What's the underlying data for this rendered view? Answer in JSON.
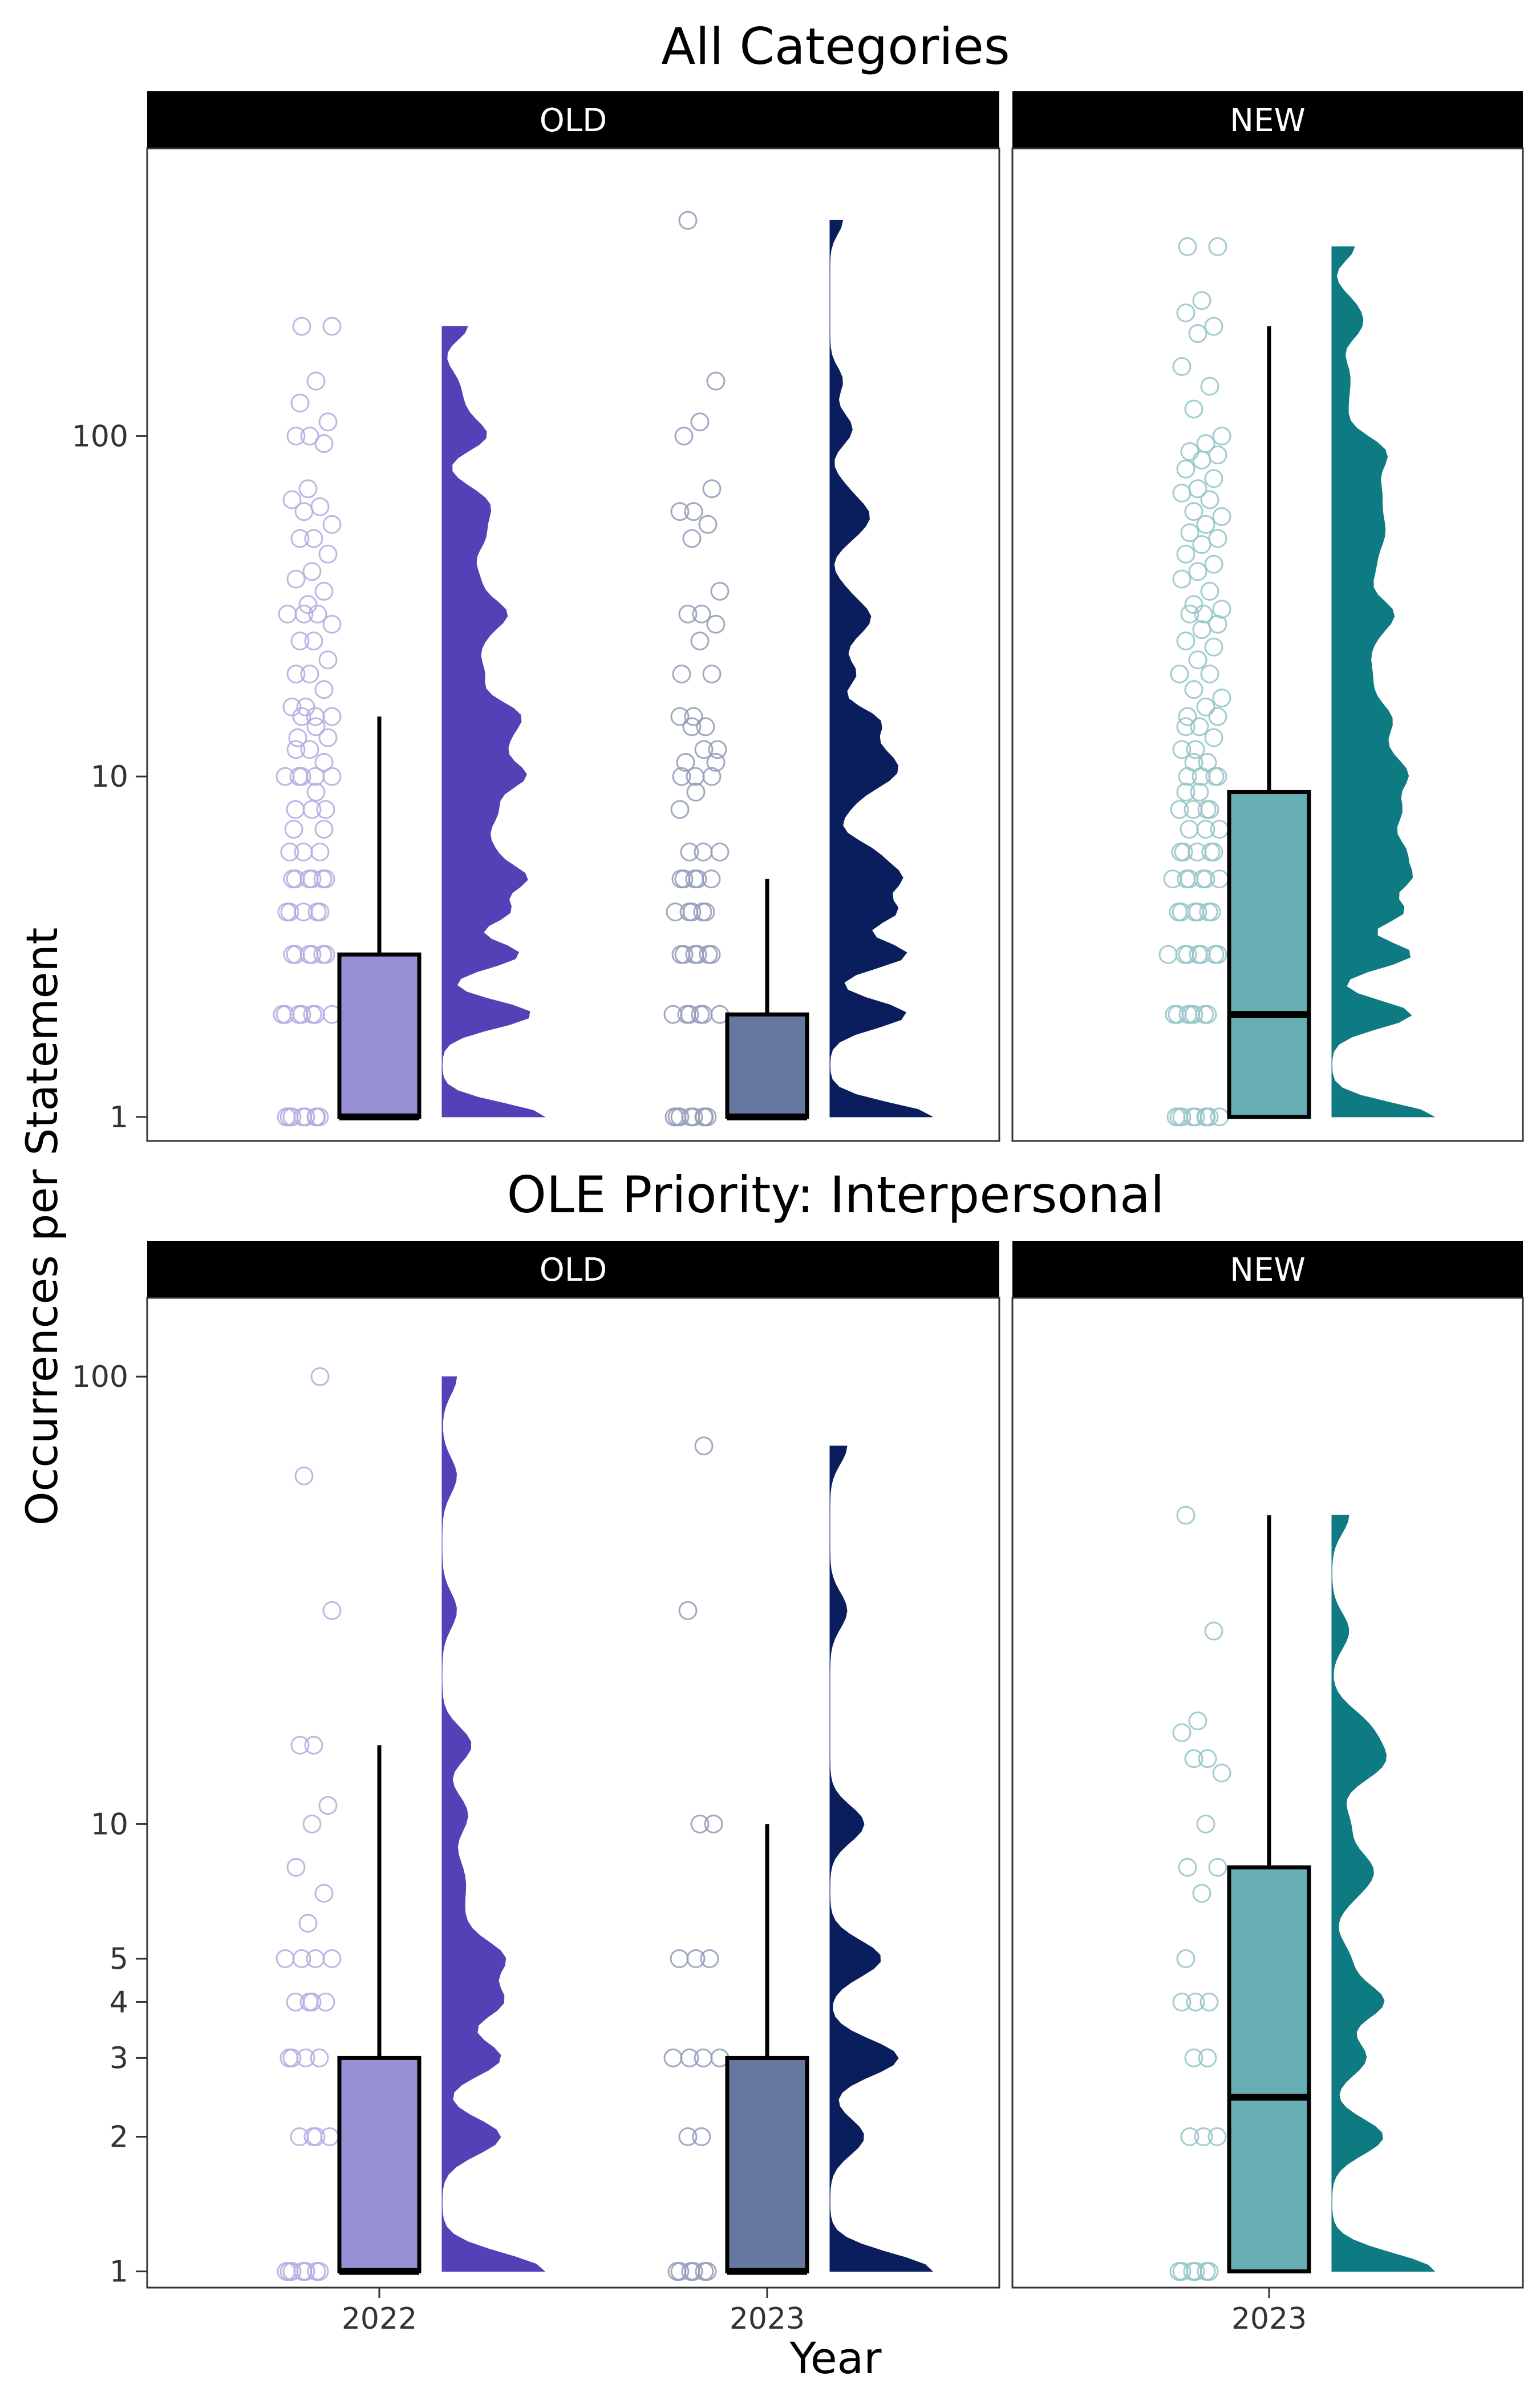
{
  "colors": {
    "2022_old": "#5540B8",
    "2023_old": "#0A1E5E",
    "2023_new": "#0E7A82",
    "box_2022_old": "#9590D4",
    "box_2023_old": "#6678A0",
    "box_2023_new": "#67AEB4"
  },
  "axes": {
    "ylabel": "Occurrences per Statement",
    "xlabel": "Year",
    "yscale": "log10"
  },
  "chart_data": [
    {
      "type": "box-raincloud",
      "title": "All Categories",
      "ylim": [
        0.85,
        700
      ],
      "yticks": [
        1,
        10,
        100
      ],
      "yticklabels": [
        "1",
        "10",
        "100"
      ],
      "panels": [
        {
          "strip": "OLD",
          "groups": [
            {
              "x": "2022",
              "color_key": "2022_old",
              "box": {
                "min": 1,
                "q1": 1,
                "median": 1,
                "q3": 3,
                "max": 15
              },
              "points": [
                1,
                1,
                1,
                1,
                1,
                1,
                1,
                1,
                2,
                2,
                2,
                2,
                2,
                2,
                2,
                3,
                3,
                3,
                3,
                3,
                3,
                4,
                4,
                4,
                4,
                4,
                5,
                5,
                5,
                5,
                5,
                5,
                6,
                6,
                6,
                7,
                7,
                8,
                8,
                8,
                9,
                10,
                10,
                10,
                10,
                10,
                11,
                12,
                12,
                13,
                13,
                14,
                15,
                15,
                15,
                16,
                16,
                18,
                20,
                20,
                22,
                25,
                25,
                28,
                30,
                30,
                30,
                32,
                35,
                38,
                40,
                45,
                50,
                50,
                55,
                60,
                62,
                65,
                70,
                95,
                100,
                100,
                110,
                125,
                145,
                210,
                210
              ]
            },
            {
              "x": "2023",
              "color_key": "2023_old",
              "box": {
                "min": 1,
                "q1": 1,
                "median": 1,
                "q3": 2,
                "max": 5
              },
              "points": [
                1,
                1,
                1,
                1,
                1,
                1,
                1,
                1,
                2,
                2,
                2,
                2,
                2,
                2,
                3,
                3,
                3,
                3,
                3,
                3,
                4,
                4,
                4,
                4,
                4,
                5,
                5,
                5,
                5,
                5,
                6,
                6,
                6,
                8,
                9,
                10,
                10,
                10,
                11,
                11,
                12,
                12,
                14,
                14,
                15,
                15,
                20,
                20,
                25,
                28,
                30,
                30,
                35,
                50,
                55,
                60,
                60,
                70,
                100,
                110,
                145,
                430
              ]
            }
          ]
        },
        {
          "strip": "NEW",
          "groups": [
            {
              "x": "2023",
              "color_key": "2023_new",
              "box": {
                "min": 1,
                "q1": 1,
                "median": 2,
                "q3": 9,
                "max": 210
              },
              "points": [
                1,
                1,
                1,
                1,
                1,
                1,
                1,
                1,
                1,
                2,
                2,
                2,
                2,
                2,
                2,
                2,
                3,
                3,
                3,
                3,
                3,
                3,
                3,
                4,
                4,
                4,
                4,
                4,
                4,
                5,
                5,
                5,
                5,
                5,
                5,
                6,
                6,
                6,
                6,
                6,
                7,
                7,
                7,
                8,
                8,
                8,
                8,
                9,
                9,
                10,
                10,
                10,
                10,
                11,
                11,
                12,
                12,
                13,
                14,
                14,
                15,
                15,
                16,
                17,
                18,
                20,
                20,
                22,
                24,
                25,
                27,
                28,
                30,
                30,
                31,
                32,
                35,
                38,
                40,
                42,
                45,
                48,
                50,
                52,
                55,
                58,
                60,
                65,
                68,
                70,
                75,
                80,
                85,
                88,
                90,
                95,
                100,
                120,
                140,
                160,
                200,
                210,
                230,
                250,
                360,
                360
              ]
            }
          ]
        }
      ]
    },
    {
      "type": "box-raincloud",
      "title": "OLE Priority: Interpersonal",
      "ylim": [
        0.92,
        150
      ],
      "yticks": [
        1,
        2,
        3,
        4,
        5,
        10,
        100
      ],
      "yticklabels": [
        "1",
        "2",
        "3",
        "4",
        "5",
        "10",
        "100"
      ],
      "panels": [
        {
          "strip": "OLD",
          "groups": [
            {
              "x": "2022",
              "color_key": "2022_old",
              "box": {
                "min": 1,
                "q1": 1,
                "median": 1,
                "q3": 3,
                "max": 15
              },
              "points": [
                1,
                1,
                1,
                1,
                1,
                1,
                1,
                2,
                2,
                2,
                2,
                3,
                3,
                3,
                3,
                4,
                4,
                4,
                4,
                5,
                5,
                5,
                5,
                6,
                7,
                8,
                10,
                11,
                15,
                15,
                30,
                60,
                100
              ]
            },
            {
              "x": "2023",
              "color_key": "2023_old",
              "box": {
                "min": 1,
                "q1": 1,
                "median": 1,
                "q3": 3,
                "max": 10
              },
              "points": [
                1,
                1,
                1,
                1,
                1,
                1,
                2,
                2,
                3,
                3,
                3,
                3,
                5,
                5,
                5,
                10,
                10,
                30,
                70
              ]
            }
          ]
        },
        {
          "strip": "NEW",
          "groups": [
            {
              "x": "2023",
              "color_key": "2023_new",
              "box": {
                "min": 1,
                "q1": 1,
                "median": 2.45,
                "q3": 8,
                "max": 49
              },
              "points": [
                1,
                1,
                1,
                1,
                1,
                1,
                2,
                2,
                2,
                3,
                3,
                4,
                4,
                4,
                5,
                7,
                8,
                8,
                10,
                13,
                14,
                14,
                16,
                17,
                27,
                49
              ]
            }
          ]
        }
      ]
    }
  ]
}
